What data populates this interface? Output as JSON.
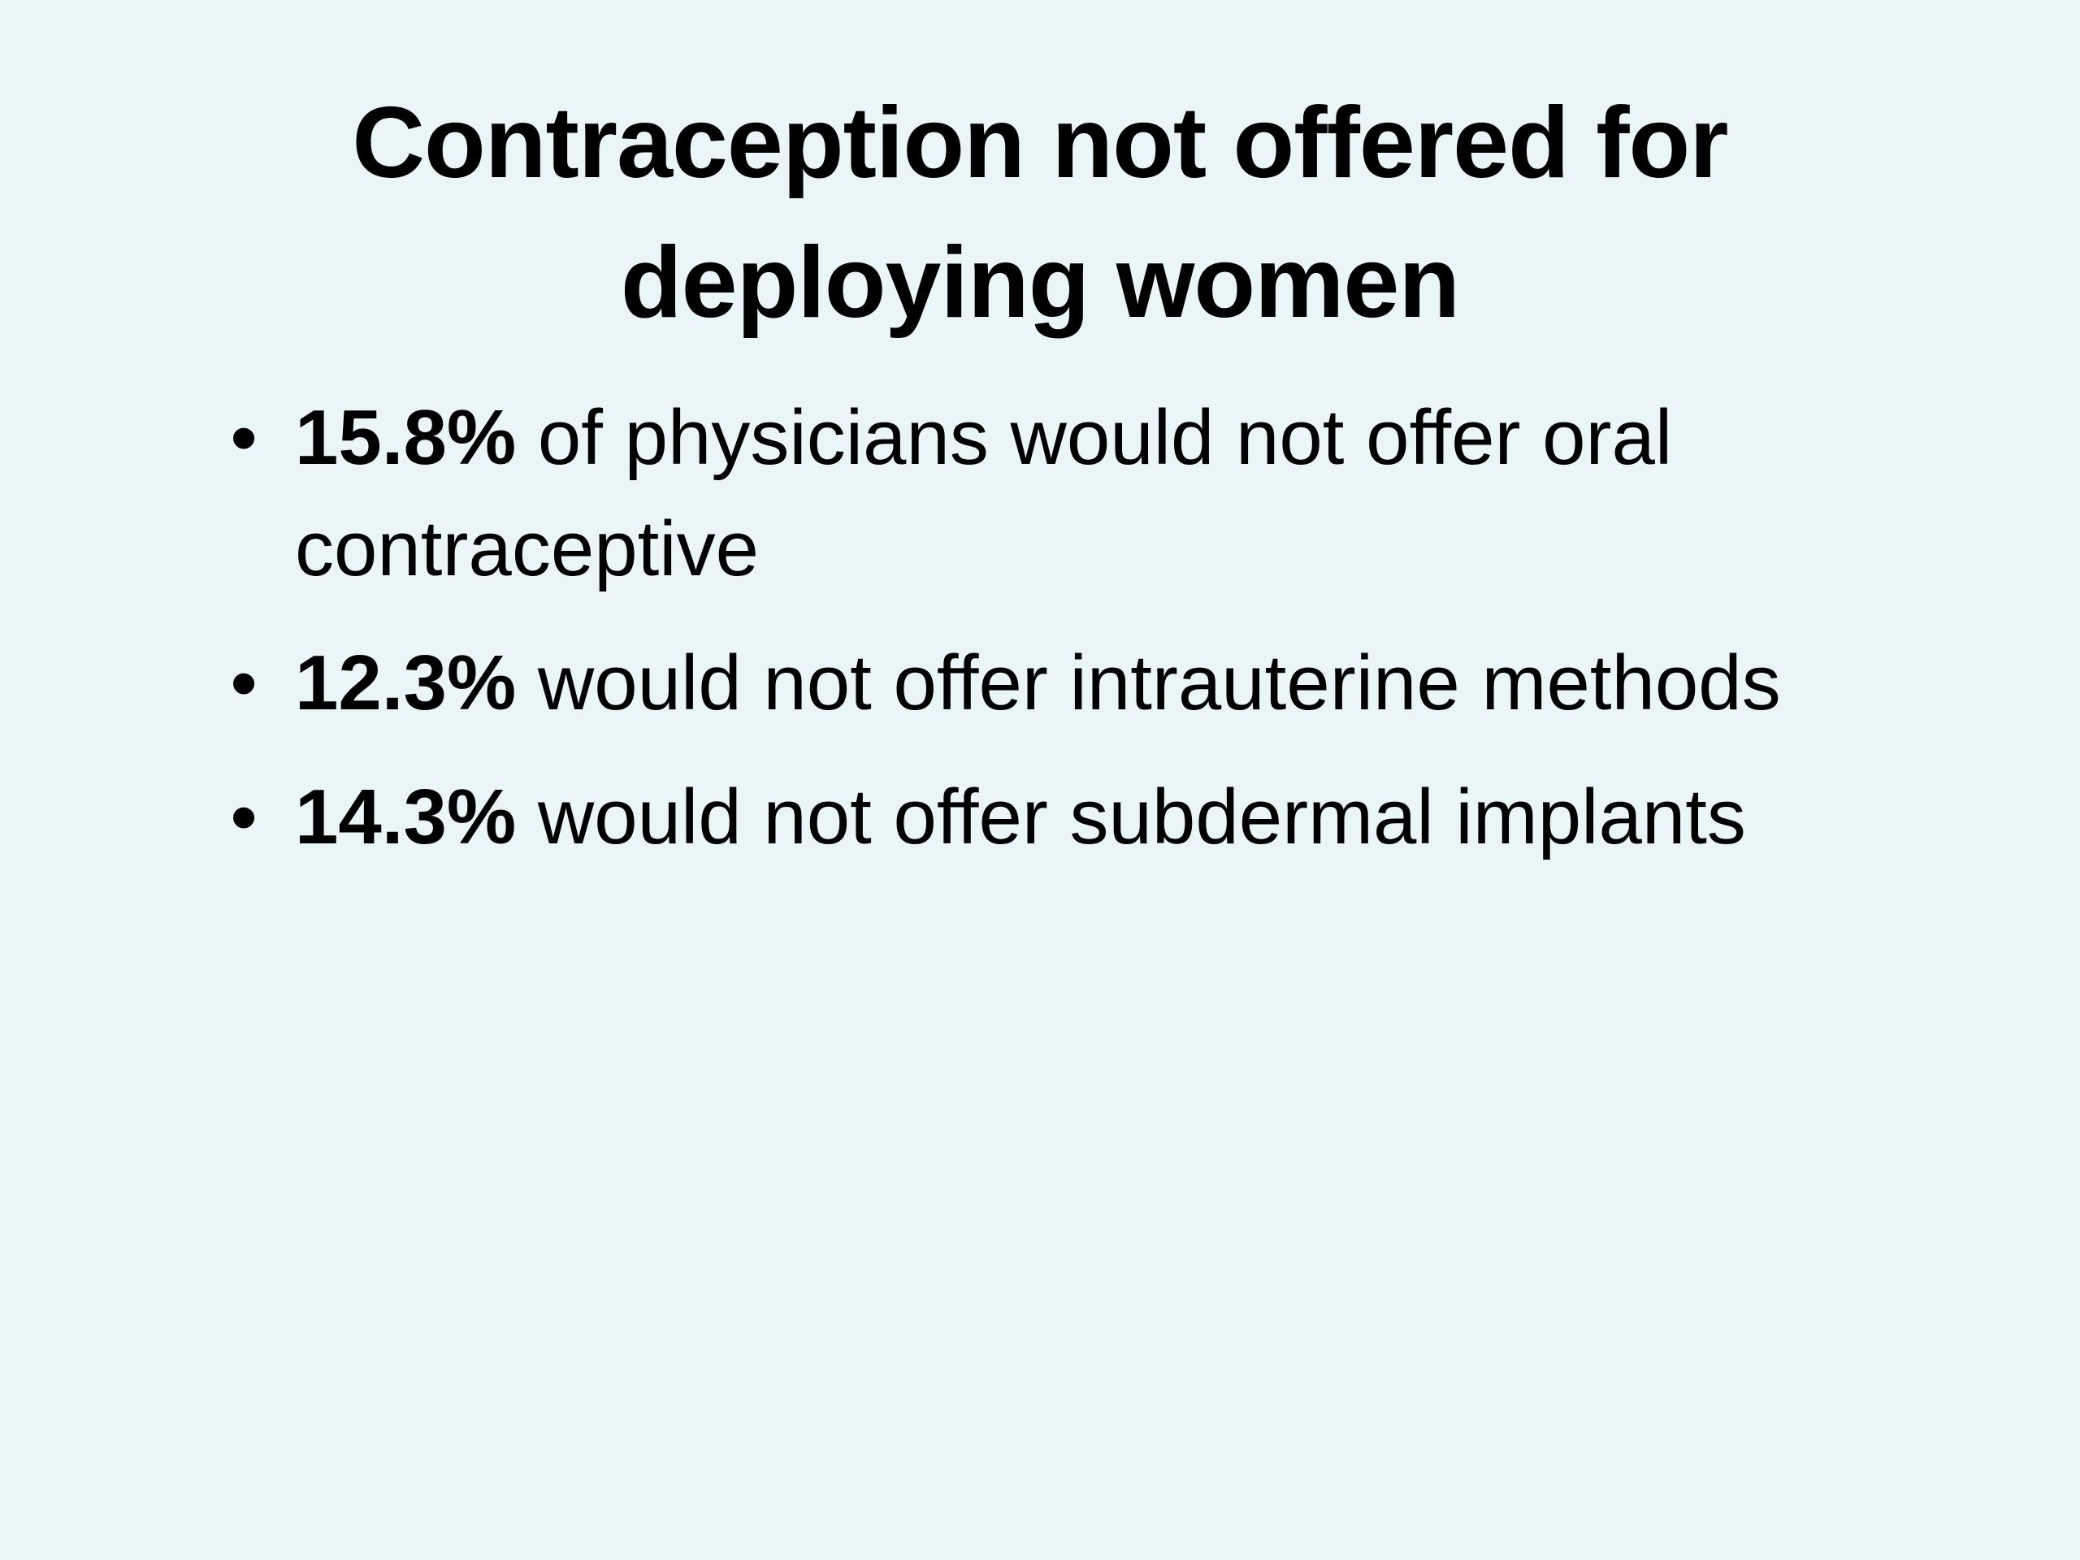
{
  "slide": {
    "title_lines": [
      "Contraception not offered for",
      "deploying women"
    ],
    "bullet_marker": "•",
    "bullets": [
      {
        "percent": "15.8%",
        "text_line1": " of physicians would not offer oral",
        "text_line2": "contraceptive"
      },
      {
        "percent": "12.3%",
        "text_line1": " would not offer intrauterine methods"
      },
      {
        "percent": "14.3%",
        "text_line1": " would not offer subdermal implants"
      }
    ]
  },
  "colors": {
    "background": "#eaf5f7",
    "text": "#000000"
  }
}
